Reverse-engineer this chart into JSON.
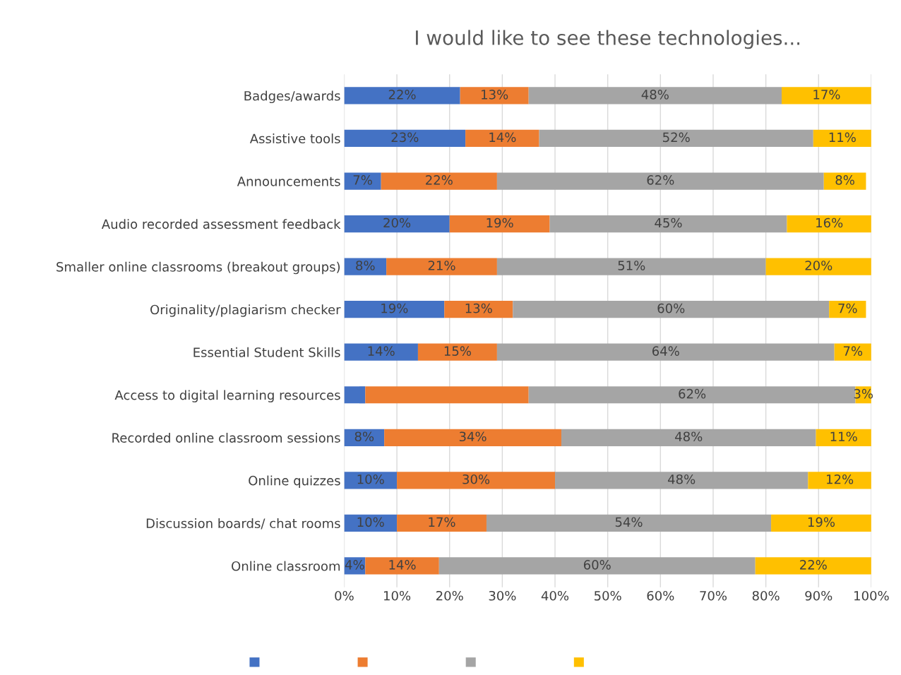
{
  "chart_data": {
    "type": "bar",
    "orientation": "horizontal",
    "stacked": true,
    "title": "I would like to see these technologies...",
    "categories": [
      "Badges/awards",
      "Assistive tools",
      "Announcements",
      "Audio recorded assessment feedback",
      "Smaller online classrooms (breakout groups)",
      "Originality/plagiarism checker",
      "Essential Student Skills",
      "Access to digital learning resources",
      "Recorded online classroom sessions",
      "Online quizzes",
      "Discussion boards/ chat rooms",
      "Online classroom"
    ],
    "series": [
      {
        "color": "#4472c4",
        "values": [
          22,
          23,
          7,
          20,
          8,
          19,
          14,
          4,
          7.6,
          10,
          10,
          4
        ],
        "value_labels": [
          "22%",
          "23%",
          "7%",
          "20%",
          "8%",
          "19%",
          "14%",
          null,
          "8%",
          "10%",
          "10%",
          "4%"
        ]
      },
      {
        "color": "#ed7d31",
        "values": [
          13,
          14,
          22,
          19,
          21,
          13,
          15,
          31,
          33.6,
          30,
          17,
          14
        ],
        "value_labels": [
          "13%",
          "14%",
          "22%",
          "19%",
          "21%",
          "13%",
          "15%",
          null,
          "34%",
          "30%",
          "17%",
          "14%"
        ]
      },
      {
        "color": "#a5a5a5",
        "values": [
          48,
          52,
          62,
          45,
          51,
          60,
          64,
          62,
          48.3,
          48,
          54,
          60
        ],
        "value_labels": [
          "48%",
          "52%",
          "62%",
          "45%",
          "51%",
          "60%",
          "64%",
          "62%",
          "48%",
          "48%",
          "54%",
          "60%"
        ]
      },
      {
        "color": "#ffc000",
        "values": [
          17,
          11,
          8,
          16,
          20,
          7,
          7,
          3,
          10.5,
          12,
          19,
          22
        ],
        "value_labels": [
          "17%",
          "11%",
          "8%",
          "16%",
          "20%",
          "7%",
          "7%",
          "3%",
          "11%",
          "12%",
          "19%",
          "22%"
        ]
      }
    ],
    "xlim": [
      0,
      100
    ],
    "xticks": [
      {
        "value": 0,
        "label": "0%"
      },
      {
        "value": 10,
        "label": "10%"
      },
      {
        "value": 20,
        "label": "20%"
      },
      {
        "value": 30,
        "label": "30%"
      },
      {
        "value": 40,
        "label": "40%"
      },
      {
        "value": 50,
        "label": "50%"
      },
      {
        "value": 60,
        "label": "60%"
      },
      {
        "value": 70,
        "label": "70%"
      },
      {
        "value": 80,
        "label": "80%"
      },
      {
        "value": 90,
        "label": "90%"
      },
      {
        "value": 100,
        "label": "100%"
      }
    ],
    "grid": "x"
  }
}
